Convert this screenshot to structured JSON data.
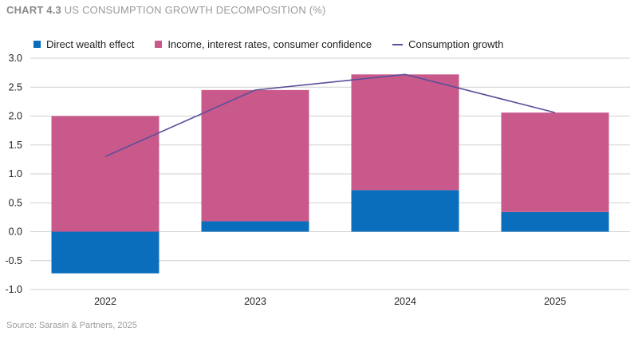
{
  "header": {
    "chart_label": "CHART 4.3",
    "title": "US CONSUMPTION GROWTH DECOMPOSITION (%)"
  },
  "footer": {
    "source": "Source: Sarasin & Partners, 2025"
  },
  "colors": {
    "direct_wealth": "#0a6ebd",
    "income": "#c9598a",
    "consumption_line": "#5a4f9a",
    "grid": "#cfcfcf"
  },
  "chart_data": {
    "type": "bar",
    "stacked": true,
    "title": "US CONSUMPTION GROWTH DECOMPOSITION (%)",
    "categories": [
      "2022",
      "2023",
      "2024",
      "2025"
    ],
    "series": [
      {
        "name": "Direct wealth effect",
        "type": "bar",
        "values": [
          -0.72,
          0.18,
          0.72,
          0.34
        ]
      },
      {
        "name": "Income, interest rates, consumer confidence",
        "type": "bar",
        "values": [
          2.0,
          2.27,
          2.0,
          1.72
        ]
      },
      {
        "name": "Consumption growth",
        "type": "line",
        "values": [
          1.3,
          2.45,
          2.72,
          2.06
        ]
      }
    ],
    "ylim": [
      -1.0,
      3.0
    ],
    "yticks": [
      "3.0",
      "2.5",
      "2.0",
      "1.5",
      "1.0",
      "0.5",
      "0.0",
      "-0.5",
      "-1.0"
    ],
    "xlabel": "",
    "ylabel": "",
    "grid": true,
    "legend_position": "top-left"
  }
}
